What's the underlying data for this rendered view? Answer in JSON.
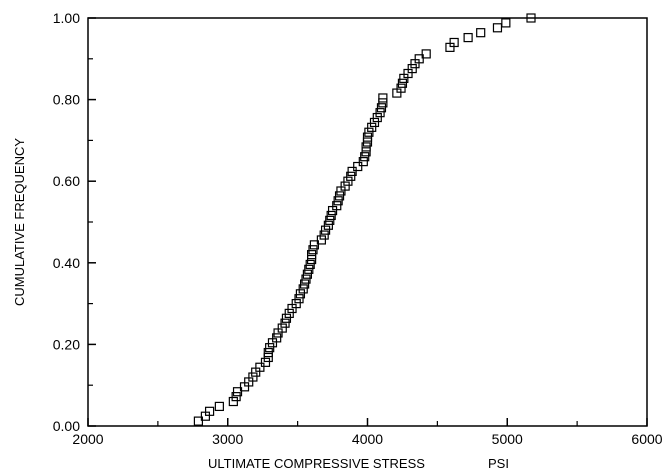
{
  "chart_data": {
    "type": "scatter",
    "xlabel": "ULTIMATE COMPRESSIVE STRESS",
    "xunit": "PSI",
    "ylabel": "CUMULATIVE FREQUENCY",
    "xlim": [
      2000,
      6000
    ],
    "ylim": [
      0,
      1
    ],
    "xticks": [
      2000,
      3000,
      4000,
      5000,
      6000
    ],
    "yticks": [
      0.0,
      0.2,
      0.4,
      0.6,
      0.8,
      1.0
    ],
    "xtick_labels": [
      "2000",
      "3000",
      "4000",
      "5000",
      "6000"
    ],
    "ytick_labels": [
      "0.00",
      "0.20",
      "0.40",
      "0.60",
      "0.80",
      "1.00"
    ],
    "marker": "open-square",
    "grid": false,
    "series": [
      {
        "points": [
          [
            2790,
            0.012
          ],
          [
            2840,
            0.024
          ],
          [
            2870,
            0.036
          ],
          [
            2940,
            0.048
          ],
          [
            3040,
            0.06
          ],
          [
            3060,
            0.072
          ],
          [
            3070,
            0.084
          ],
          [
            3120,
            0.096
          ],
          [
            3150,
            0.108
          ],
          [
            3180,
            0.12
          ],
          [
            3200,
            0.132
          ],
          [
            3230,
            0.144
          ],
          [
            3270,
            0.156
          ],
          [
            3290,
            0.168
          ],
          [
            3290,
            0.18
          ],
          [
            3300,
            0.192
          ],
          [
            3320,
            0.204
          ],
          [
            3350,
            0.216
          ],
          [
            3360,
            0.228
          ],
          [
            3390,
            0.24
          ],
          [
            3410,
            0.252
          ],
          [
            3420,
            0.264
          ],
          [
            3440,
            0.276
          ],
          [
            3460,
            0.288
          ],
          [
            3490,
            0.3
          ],
          [
            3510,
            0.312
          ],
          [
            3520,
            0.324
          ],
          [
            3540,
            0.336
          ],
          [
            3550,
            0.348
          ],
          [
            3560,
            0.36
          ],
          [
            3570,
            0.372
          ],
          [
            3580,
            0.384
          ],
          [
            3590,
            0.396
          ],
          [
            3600,
            0.408
          ],
          [
            3600,
            0.42
          ],
          [
            3610,
            0.432
          ],
          [
            3620,
            0.444
          ],
          [
            3670,
            0.456
          ],
          [
            3690,
            0.468
          ],
          [
            3700,
            0.48
          ],
          [
            3720,
            0.492
          ],
          [
            3730,
            0.504
          ],
          [
            3740,
            0.516
          ],
          [
            3750,
            0.528
          ],
          [
            3780,
            0.54
          ],
          [
            3790,
            0.552
          ],
          [
            3800,
            0.564
          ],
          [
            3810,
            0.576
          ],
          [
            3840,
            0.588
          ],
          [
            3860,
            0.6
          ],
          [
            3880,
            0.612
          ],
          [
            3890,
            0.624
          ],
          [
            3930,
            0.636
          ],
          [
            3970,
            0.648
          ],
          [
            3980,
            0.66
          ],
          [
            3990,
            0.672
          ],
          [
            3990,
            0.684
          ],
          [
            4000,
            0.696
          ],
          [
            4000,
            0.708
          ],
          [
            4010,
            0.72
          ],
          [
            4030,
            0.732
          ],
          [
            4050,
            0.744
          ],
          [
            4070,
            0.756
          ],
          [
            4090,
            0.768
          ],
          [
            4100,
            0.78
          ],
          [
            4110,
            0.792
          ],
          [
            4110,
            0.804
          ],
          [
            4210,
            0.816
          ],
          [
            4240,
            0.828
          ],
          [
            4250,
            0.84
          ],
          [
            4260,
            0.852
          ],
          [
            4290,
            0.864
          ],
          [
            4320,
            0.876
          ],
          [
            4340,
            0.888
          ],
          [
            4370,
            0.9
          ],
          [
            4420,
            0.912
          ],
          [
            4590,
            0.928
          ],
          [
            4620,
            0.94
          ],
          [
            4720,
            0.952
          ],
          [
            4810,
            0.964
          ],
          [
            4930,
            0.976
          ],
          [
            4990,
            0.988
          ],
          [
            5170,
            1.0
          ]
        ]
      }
    ]
  }
}
